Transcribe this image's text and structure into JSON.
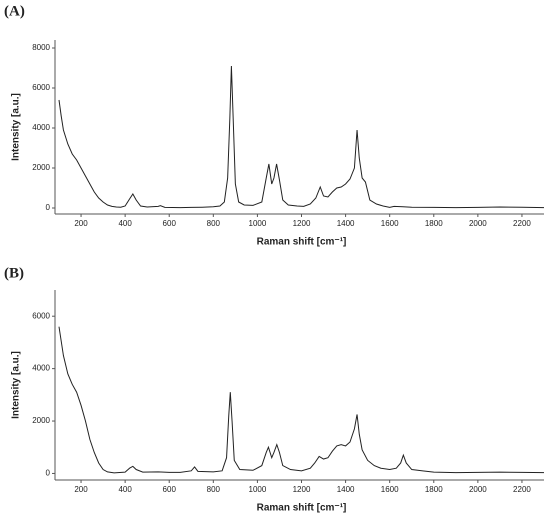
{
  "chart_data": [
    {
      "type": "line",
      "panel_label": "(A)",
      "x_label": "Raman shift [cm⁻¹]",
      "y_label": "Intensity [a.u.]",
      "color": "#222222",
      "xlim": [
        100,
        2300
      ],
      "ylim": [
        -300,
        8400
      ],
      "xticks": [
        200,
        400,
        600,
        800,
        1000,
        1200,
        1400,
        1600,
        1800,
        2000,
        2200
      ],
      "yticks": [
        0,
        2000,
        4000,
        6000,
        8000
      ],
      "x": [
        100,
        110,
        120,
        140,
        160,
        180,
        200,
        220,
        240,
        260,
        280,
        300,
        320,
        340,
        360,
        380,
        400,
        420,
        435,
        450,
        470,
        500,
        550,
        560,
        580,
        650,
        700,
        750,
        800,
        830,
        850,
        865,
        875,
        882,
        890,
        900,
        915,
        940,
        980,
        1020,
        1040,
        1052,
        1065,
        1075,
        1087,
        1100,
        1115,
        1140,
        1180,
        1210,
        1240,
        1265,
        1285,
        1300,
        1320,
        1340,
        1360,
        1380,
        1400,
        1420,
        1440,
        1452,
        1462,
        1475,
        1490,
        1510,
        1540,
        1570,
        1600,
        1620,
        1660,
        1700,
        1800,
        1900,
        2000,
        2100,
        2200,
        2300
      ],
      "values": [
        5400,
        4600,
        3900,
        3200,
        2700,
        2400,
        2000,
        1600,
        1200,
        800,
        500,
        300,
        150,
        80,
        50,
        40,
        100,
        450,
        700,
        400,
        100,
        50,
        80,
        120,
        30,
        20,
        30,
        40,
        60,
        100,
        300,
        1500,
        4500,
        7100,
        4500,
        1200,
        300,
        150,
        130,
        300,
        1500,
        2200,
        1200,
        1500,
        2200,
        1400,
        400,
        150,
        100,
        80,
        200,
        500,
        1050,
        600,
        550,
        800,
        1000,
        1050,
        1200,
        1450,
        2000,
        3900,
        2500,
        1500,
        1300,
        400,
        200,
        100,
        30,
        80,
        60,
        40,
        30,
        20,
        30,
        50,
        40,
        20
      ]
    },
    {
      "type": "line",
      "panel_label": "(B)",
      "x_label": "Raman shift [cm⁻¹]",
      "y_label": "Intensity [a.u.]",
      "color": "#222222",
      "xlim": [
        100,
        2300
      ],
      "ylim": [
        -250,
        7000
      ],
      "xticks": [
        200,
        400,
        600,
        800,
        1000,
        1200,
        1400,
        1600,
        1800,
        2000,
        2200
      ],
      "yticks": [
        0,
        2000,
        4000,
        6000
      ],
      "x": [
        100,
        120,
        140,
        160,
        180,
        200,
        220,
        240,
        260,
        280,
        300,
        320,
        350,
        400,
        420,
        435,
        450,
        480,
        550,
        600,
        650,
        700,
        715,
        730,
        800,
        840,
        860,
        870,
        877,
        885,
        895,
        920,
        980,
        1020,
        1040,
        1050,
        1065,
        1075,
        1088,
        1100,
        1115,
        1150,
        1200,
        1240,
        1260,
        1280,
        1300,
        1320,
        1340,
        1360,
        1380,
        1400,
        1420,
        1440,
        1452,
        1462,
        1475,
        1500,
        1530,
        1560,
        1600,
        1630,
        1650,
        1662,
        1675,
        1700,
        1750,
        1800,
        1900,
        2000,
        2100,
        2200,
        2300
      ],
      "values": [
        5600,
        4500,
        3800,
        3400,
        3100,
        2600,
        2000,
        1300,
        800,
        400,
        150,
        60,
        20,
        50,
        200,
        270,
        150,
        50,
        60,
        40,
        40,
        100,
        250,
        80,
        60,
        100,
        600,
        2200,
        3100,
        2000,
        500,
        150,
        120,
        300,
        800,
        1000,
        600,
        800,
        1100,
        800,
        300,
        150,
        100,
        200,
        400,
        650,
        550,
        600,
        850,
        1050,
        1100,
        1050,
        1200,
        1700,
        2250,
        1500,
        900,
        500,
        300,
        200,
        150,
        200,
        400,
        700,
        400,
        150,
        100,
        50,
        30,
        40,
        50,
        40,
        30
      ]
    }
  ]
}
